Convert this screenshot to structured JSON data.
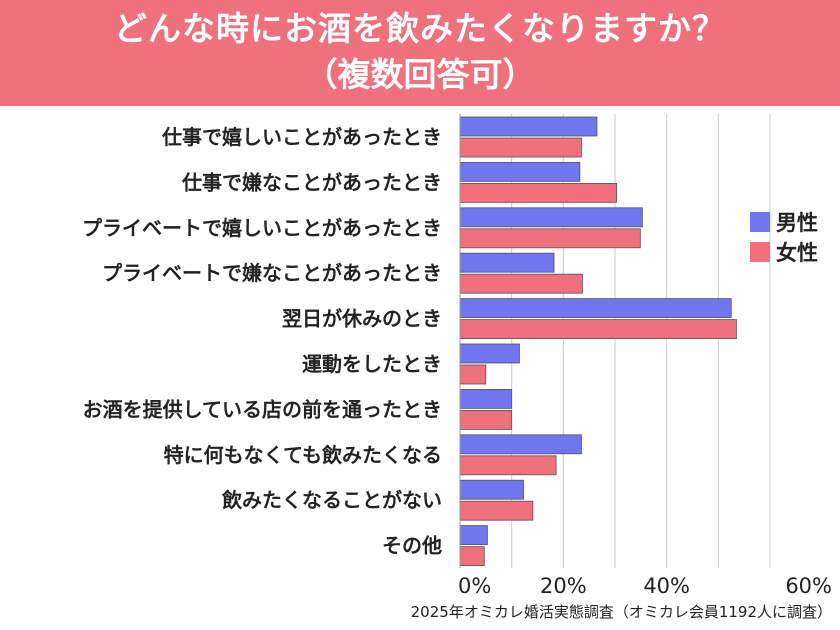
{
  "header": {
    "title_line1": "どんな時にお酒を飲みたくなりますか？",
    "title_line2": "（複数回答可）"
  },
  "source": "2025年オミカレ婚活実態調査（オミカレ会員1192人に調査）",
  "colors": {
    "header_bg": "#f0717e",
    "male": "#7076ee",
    "female": "#f0707e",
    "grid": "#cccccc"
  },
  "chart_data": {
    "type": "bar",
    "orientation": "horizontal",
    "title": "どんな時にお酒を飲みたくなりますか？（複数回答可）",
    "categories": [
      "仕事で嬉しいことがあったとき",
      "仕事で嫌なことがあったとき",
      "プライベートで嬉しいことがあったとき",
      "プライベートで嫌なことがあったとき",
      "翌日が休みのとき",
      "運動をしたとき",
      "お酒を提供している店の前を通ったとき",
      "特に何もなくても飲みたくなる",
      "飲みたくなることがない",
      "その他"
    ],
    "series": [
      {
        "name": "男性",
        "values": [
          26.5,
          23.2,
          35.3,
          18.2,
          52.5,
          11.5,
          10.0,
          23.5,
          12.3,
          5.3
        ]
      },
      {
        "name": "女性",
        "values": [
          23.5,
          30.3,
          34.9,
          23.7,
          53.5,
          5.0,
          10.0,
          18.6,
          14.1,
          4.7
        ]
      }
    ],
    "xlim": [
      0,
      60
    ],
    "xticks": [
      0,
      20,
      40,
      60
    ],
    "xtick_labels": [
      "0%",
      "20%",
      "40%",
      "60%"
    ],
    "grid": true,
    "legend_position": "right",
    "xlabel": "",
    "ylabel": ""
  }
}
